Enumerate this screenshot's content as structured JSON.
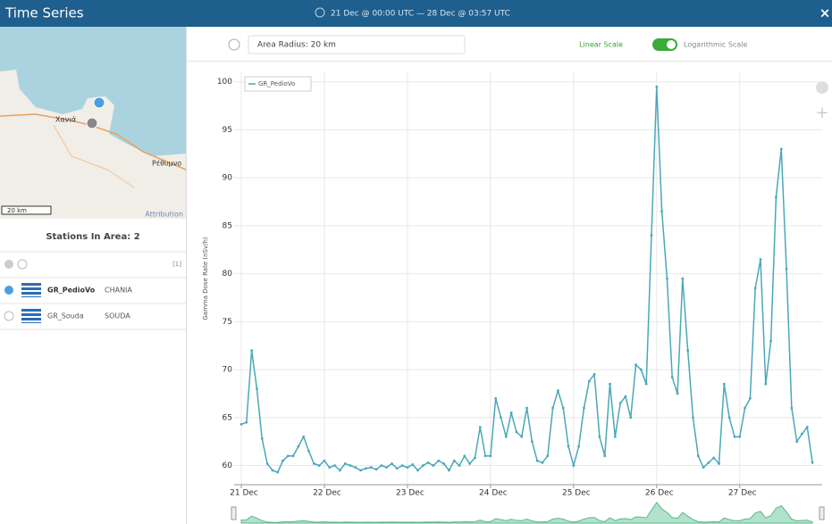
{
  "header": {
    "title": "Time Series",
    "range": "21 Dec @ 00:00 UTC — 28 Dec @ 03:57 UTC"
  },
  "map": {
    "labels": [
      "Χανιά",
      "Ρέθυμνο"
    ],
    "scale": "20 km",
    "attribution": "Attribution"
  },
  "stations": {
    "title": "Stations In Area: 2",
    "count_label": "[1]",
    "rows": [
      {
        "name": "GR_PedioVo",
        "region": "CHANIA"
      },
      {
        "name": "GR_Souda",
        "region": "SOUDA"
      }
    ]
  },
  "toolbar": {
    "radius": "Area Radius: 20 km",
    "linear": "Linear Scale",
    "log": "Logarithmic Scale"
  },
  "chart_data": {
    "type": "line",
    "y_label": "Gamma Dose Rate (nSv/h)",
    "categories": [
      "21 Dec",
      null,
      null,
      null,
      null,
      null,
      null,
      null,
      null,
      null,
      null,
      null,
      null,
      null,
      null,
      null,
      "22 Dec",
      null,
      null,
      null,
      null,
      null,
      null,
      null,
      null,
      null,
      null,
      null,
      null,
      null,
      null,
      null,
      "23 Dec",
      null,
      null,
      null,
      null,
      null,
      null,
      null,
      null,
      null,
      null,
      null,
      null,
      null,
      null,
      null,
      "24 Dec",
      null,
      null,
      null,
      null,
      null,
      null,
      null,
      null,
      null,
      null,
      null,
      null,
      null,
      null,
      null,
      "25 Dec",
      null,
      null,
      null,
      null,
      null,
      null,
      null,
      null,
      null,
      null,
      null,
      null,
      null,
      null,
      null,
      "26 Dec",
      null,
      null,
      null,
      null,
      null,
      null,
      null,
      null,
      null,
      null,
      null,
      null,
      null,
      null,
      null,
      "27 Dec",
      null,
      null,
      null,
      null,
      null,
      null,
      null,
      null,
      null,
      null,
      null,
      null,
      null,
      null
    ],
    "series": [
      {
        "name": "GR_PedioVo",
        "color": "#4aa8b8",
        "values": [
          64.3,
          64.5,
          72,
          68,
          62.8,
          60.2,
          59.5,
          59.3,
          60.5,
          61,
          61,
          62,
          63,
          61.5,
          60.2,
          60,
          60.5,
          59.8,
          60,
          59.5,
          60.2,
          60,
          59.8,
          59.5,
          59.7,
          59.8,
          59.6,
          60,
          59.8,
          60.2,
          59.7,
          60,
          59.8,
          60.1,
          59.5,
          60,
          60.3,
          60,
          60.5,
          60.2,
          59.5,
          60.5,
          60,
          61,
          60.2,
          60.8,
          64,
          61,
          61,
          67,
          65,
          63,
          65.5,
          63.5,
          63,
          66,
          62.5,
          60.5,
          60.3,
          61,
          66,
          67.8,
          66,
          62,
          60,
          62,
          66,
          68.8,
          69.5,
          63,
          61,
          68.5,
          63,
          66.5,
          67.2,
          65,
          70.5,
          70,
          68.5,
          84,
          99.5,
          86.5,
          79.5,
          69.2,
          67.5,
          79.5,
          72,
          65,
          61,
          59.8,
          60.3,
          60.8,
          60.2,
          68.5,
          65,
          63,
          63,
          66,
          67,
          78.5,
          81.5,
          68.5,
          73,
          88,
          93,
          80.5,
          66,
          62.5,
          63.3,
          64,
          60.3
        ]
      }
    ],
    "ylim": [
      58,
      101
    ],
    "yticks": [
      60,
      65,
      70,
      75,
      80,
      85,
      90,
      95,
      100
    ],
    "grid": true,
    "legend": "top-left"
  }
}
